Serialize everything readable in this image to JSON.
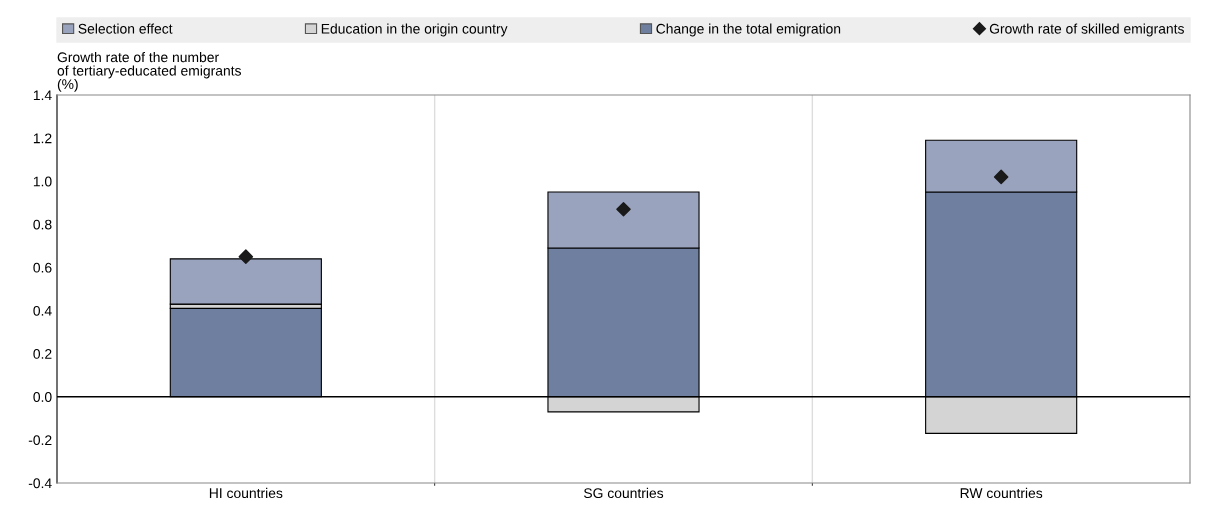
{
  "chart_data": {
    "type": "bar",
    "stacked": true,
    "categories": [
      "HI countries",
      "SG countries",
      "RW countries"
    ],
    "ylabel": "Growth rate of the number\nof tertiary-educated emigrants\n(%)",
    "series": [
      {
        "name": "Change in the total emigration",
        "color": "#6f7fa0",
        "values": [
          0.41,
          0.69,
          0.95
        ]
      },
      {
        "name": "Education in the origin country",
        "color": "#d4d4d4",
        "values": [
          0.02,
          -0.07,
          -0.17
        ]
      },
      {
        "name": "Selection effect",
        "color": "#9aa3bd",
        "values": [
          0.21,
          0.26,
          0.24
        ]
      },
      {
        "name": "Growth rate of skilled emigrants",
        "type": "scatter",
        "color": "#1a1a1a",
        "marker": "diamond",
        "values": [
          0.65,
          0.87,
          1.02
        ]
      }
    ],
    "ylim": [
      -0.4,
      1.4
    ],
    "yticks": [
      {
        "value": -0.4,
        "label": "-0.4"
      },
      {
        "value": -0.2,
        "label": "-0.2"
      },
      {
        "value": 0.0,
        "label": "0.0"
      },
      {
        "value": 0.2,
        "label": "0.2"
      },
      {
        "value": 0.4,
        "label": "0.4"
      },
      {
        "value": 0.6,
        "label": "0.6"
      },
      {
        "value": 0.8,
        "label": "0.8"
      },
      {
        "value": 1.0,
        "label": "1.0"
      },
      {
        "value": 1.2,
        "label": "1.2"
      },
      {
        "value": 1.4,
        "label": "1.4"
      }
    ],
    "grid": "x",
    "legend": "top"
  }
}
